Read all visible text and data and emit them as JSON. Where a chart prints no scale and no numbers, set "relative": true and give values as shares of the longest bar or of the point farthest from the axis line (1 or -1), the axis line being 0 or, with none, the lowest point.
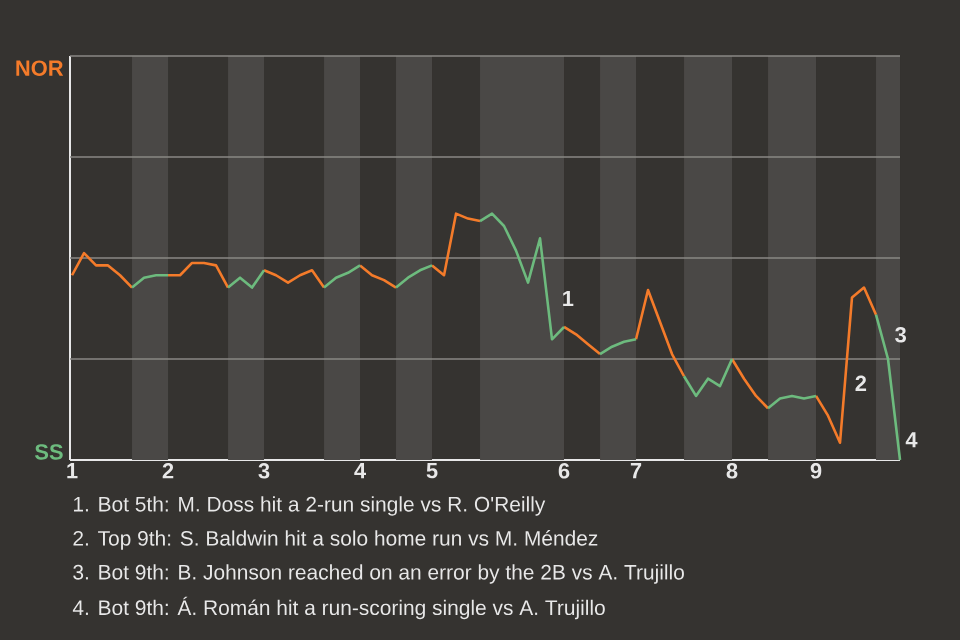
{
  "chart_data": {
    "type": "line",
    "relative": true,
    "categories": [
      "1",
      null,
      null,
      null,
      null,
      null,
      null,
      null,
      "2",
      null,
      null,
      null,
      null,
      null,
      null,
      null,
      "3",
      null,
      null,
      null,
      null,
      null,
      null,
      null,
      "4",
      null,
      null,
      null,
      null,
      null,
      "5",
      null,
      null,
      null,
      null,
      null,
      null,
      null,
      null,
      null,
      null,
      "6",
      null,
      null,
      null,
      null,
      null,
      "7",
      null,
      null,
      null,
      null,
      null,
      null,
      null,
      "8",
      null,
      null,
      null,
      null,
      null,
      null,
      "9",
      null,
      null,
      null,
      null,
      null,
      null,
      null
    ],
    "series": [
      {
        "color": "#f47b2a",
        "values": [
          0.75,
          0.84,
          0.79,
          0.79,
          0.75,
          0.7,
          null,
          null,
          0.75,
          0.75,
          0.8,
          0.8,
          0.79,
          0.7,
          null,
          null,
          0.77,
          0.75,
          0.72,
          0.75,
          0.77,
          0.7,
          null,
          null,
          0.79,
          0.75,
          0.73,
          0.7,
          null,
          null,
          0.79,
          0.75,
          1,
          0.98,
          0.97,
          null,
          null,
          null,
          null,
          null,
          null,
          0.54,
          0.51,
          0.47,
          0.43,
          null,
          null,
          0.49,
          0.69,
          0.56,
          0.43,
          0.34,
          null,
          null,
          null,
          0.41,
          0.33,
          0.26,
          0.21,
          null,
          null,
          null,
          0.26,
          0.18,
          0.07,
          0.66,
          0.7,
          0.59,
          null,
          null
        ]
      },
      {
        "color": "#6dbb7e",
        "values": [
          null,
          null,
          null,
          null,
          null,
          0.7,
          0.74,
          0.75,
          0.75,
          null,
          null,
          null,
          null,
          0.7,
          0.74,
          0.7,
          0.77,
          null,
          null,
          null,
          null,
          0.7,
          0.74,
          0.76,
          0.79,
          null,
          null,
          0.7,
          0.74,
          0.77,
          0.79,
          null,
          null,
          null,
          0.97,
          1,
          0.95,
          0.85,
          0.72,
          0.9,
          0.49,
          0.54,
          null,
          null,
          0.43,
          0.46,
          0.48,
          0.49,
          null,
          null,
          null,
          0.34,
          0.26,
          0.33,
          0.3,
          0.41,
          null,
          null,
          0.21,
          0.25,
          0.26,
          0.25,
          0.26,
          null,
          null,
          null,
          null,
          0.59,
          0.41,
          0
        ]
      }
    ],
    "ref_lines": [
      {
        "axis": "y",
        "value": 0.41,
        "color": "#8a8885"
      },
      {
        "axis": "y",
        "value": 0.82,
        "color": "#8a8885"
      },
      {
        "axis": "y",
        "value": 1.23,
        "color": "#8a8885"
      },
      {
        "axis": "y",
        "value": 1.64,
        "color": "#8a8885"
      }
    ],
    "annotations": [
      "NOR",
      "SS",
      "1",
      "2",
      "3",
      "4",
      "1. Bot 5th: M. Doss hit a 2-run single vs R. O'Reilly",
      "2. Top 9th: S. Baldwin hit a solo home run vs M. Méndez",
      "3. Bot 9th: B. Johnson reached on an error by the 2B vs A. Trujillo",
      "4. Bot 9th: Á. Román hit a run-scoring single vs A. Trujillo"
    ]
  }
}
